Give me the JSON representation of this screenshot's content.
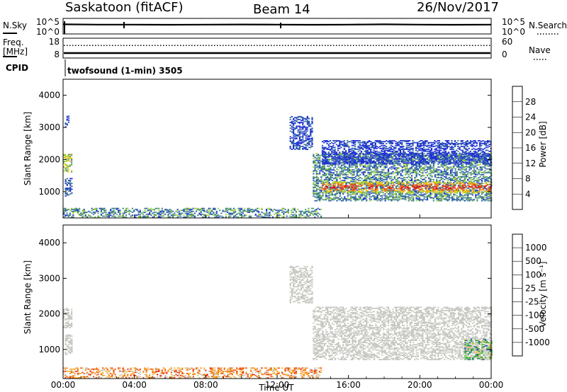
{
  "header": {
    "station": "Saskatoon (fitACF)",
    "beam": "Beam 14",
    "date": "26/Nov/2017"
  },
  "strip1": {
    "left_label": "N.Sky",
    "right_label": "N.Search",
    "left_ticks": [
      "10^5",
      "10^0"
    ],
    "right_ticks": [
      "10^5",
      "10^0"
    ]
  },
  "strip2": {
    "left_label_line1": "Freq.",
    "left_label_line2": "[MHz]",
    "right_label": "Nave",
    "left_ticks": [
      "18",
      "8"
    ],
    "right_ticks": [
      "60",
      "0"
    ],
    "cpid_label": "CPID",
    "cpid_text": "twofsound (1-min) 3505"
  },
  "colors": {
    "power_scale": [
      "#1f2dd6",
      "#2a55b8",
      "#3d7a95",
      "#55a36b",
      "#a4d53c",
      "#f2c40c",
      "#f68a0e",
      "#ee3f16",
      "#e40c10"
    ],
    "velocity_scale": [
      "#e8120f",
      "#f14b17",
      "#f78911",
      "#f4b43d",
      "#c8c8c2",
      "#4cc42f",
      "#2f8d54",
      "#2c5aa7",
      "#1f2dd6"
    ],
    "ground_scatter": "#c8c8c2"
  },
  "chart_data": [
    {
      "type": "line",
      "name": "strip-nsky-nsearch",
      "x_unit": "hours UT",
      "xlim": [
        0,
        24
      ],
      "series": [
        {
          "name": "N.Sky",
          "style": "solid",
          "x": [
            0,
            2,
            4,
            6,
            8,
            10,
            12,
            14,
            16,
            18,
            20,
            22,
            24
          ],
          "level": [
            0.62,
            0.6,
            0.6,
            0.59,
            0.6,
            0.61,
            0.6,
            0.59,
            0.6,
            0.62,
            0.6,
            0.59,
            0.6
          ]
        },
        {
          "name": "N.Search",
          "style": "dotted"
        }
      ]
    },
    {
      "type": "line",
      "name": "strip-freq-nave",
      "xlim": [
        0,
        24
      ],
      "series": [
        {
          "name": "Freq.",
          "unit": "MHz",
          "x": [
            0,
            24
          ],
          "y": [
            10.5,
            10.5
          ]
        },
        {
          "name": "Nave",
          "style": "dotted",
          "x": [
            0,
            24
          ],
          "y": [
            38,
            38
          ]
        }
      ]
    },
    {
      "type": "heatmap",
      "name": "power-panel",
      "ylabel": "Slant Range [km]",
      "xlim": [
        0,
        24
      ],
      "ylim": [
        180,
        4500
      ],
      "yticks": [
        "1000",
        "2000",
        "3000",
        "4000"
      ],
      "colorbar_label": "Power [dB]",
      "colorbar_ticks": [
        "4",
        "8",
        "12",
        "16",
        "20",
        "24",
        "28"
      ],
      "regions": [
        {
          "x0": 0.0,
          "x1": 0.5,
          "y_low": 1600,
          "y_high": 2150,
          "level": 0.5
        },
        {
          "x0": 0.1,
          "x1": 0.5,
          "y_low": 850,
          "y_high": 1400,
          "level": 0.15
        },
        {
          "x0": 0.1,
          "x1": 0.3,
          "y_low": 3000,
          "y_high": 3350,
          "level": 0.05
        },
        {
          "x0": 0.0,
          "x1": 14.5,
          "y_low": 190,
          "y_high": 480,
          "level": 0.3
        },
        {
          "x0": 12.7,
          "x1": 14.0,
          "y_low": 2300,
          "y_high": 3350,
          "level": 0.1
        },
        {
          "x0": 14.0,
          "x1": 24.0,
          "y_low": 700,
          "y_high": 2200,
          "level": 0.3
        },
        {
          "x0": 14.5,
          "x1": 24.0,
          "y_low": 950,
          "y_high": 1300,
          "level": 0.85
        },
        {
          "x0": 14.5,
          "x1": 24.0,
          "y_low": 1850,
          "y_high": 2600,
          "level": 0.05
        }
      ]
    },
    {
      "type": "heatmap",
      "name": "velocity-panel",
      "ylabel": "Slant Range [km]",
      "xlabel": "Time UT",
      "xlim": [
        0,
        24
      ],
      "ylim": [
        180,
        4500
      ],
      "xticks": [
        "00:00",
        "04:00",
        "08:00",
        "12:00",
        "16:00",
        "20:00",
        "00:00"
      ],
      "yticks": [
        "1000",
        "2000",
        "3000",
        "4000"
      ],
      "colorbar_label": "Velocity [m s⁻¹]",
      "colorbar_ticks": [
        "1000",
        "500",
        "100",
        "25",
        "-25",
        "-100",
        "-500",
        "-1000"
      ],
      "regions": [
        {
          "x0": 0.0,
          "x1": 0.5,
          "y_low": 1600,
          "y_high": 2150,
          "level": 0.5
        },
        {
          "x0": 0.1,
          "x1": 0.5,
          "y_low": 850,
          "y_high": 1400,
          "level": 0.5
        },
        {
          "x0": 0.0,
          "x1": 14.5,
          "y_low": 190,
          "y_high": 480,
          "level": 0.32
        },
        {
          "x0": 12.7,
          "x1": 14.0,
          "y_low": 2300,
          "y_high": 3350,
          "level": 0.5
        },
        {
          "x0": 14.0,
          "x1": 24.0,
          "y_low": 700,
          "y_high": 2200,
          "level": 0.5
        },
        {
          "x0": 22.5,
          "x1": 24.0,
          "y_low": 700,
          "y_high": 1300,
          "level": 0.62
        }
      ]
    }
  ]
}
